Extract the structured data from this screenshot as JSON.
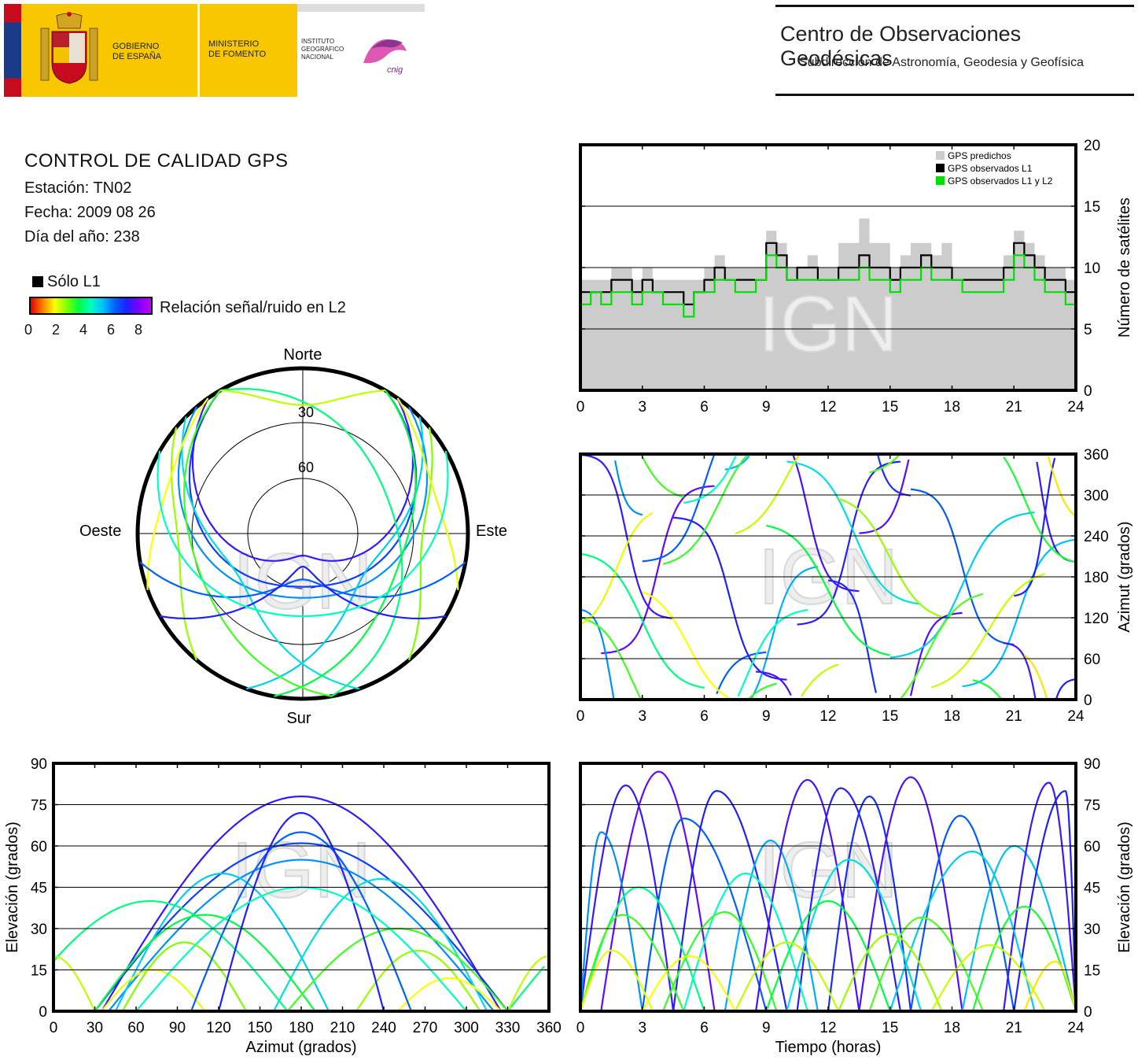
{
  "header": {
    "gov_line1": "GOBIERNO",
    "gov_line2": "DE ESPAÑA",
    "ministry_line1": "MINISTERIO",
    "ministry_line2": "DE FOMENTO",
    "ign_line1": "INSTITUTO",
    "ign_line2": "GEOGRÁFICO",
    "ign_line3": "NACIONAL",
    "cnig_logo_text": "cnig",
    "center_title": "Centro de Observaciones Geodésicas",
    "center_subtitle": "Subdirección de Astronomía, Geodesia y Geofísica"
  },
  "info": {
    "title": "CONTROL DE CALIDAD GPS",
    "station": "Estación: TN02",
    "date": "Fecha: 2009 08 26",
    "doy": "Día del año: 238",
    "legend_l1": "Sólo L1",
    "colorbar_label": "Relación señal/ruido en L2",
    "colorbar_ticks": [
      "0",
      "2",
      "4",
      "6",
      "8"
    ],
    "colorbar_colors": [
      "#e00000",
      "#ff8000",
      "#ffff00",
      "#80ff00",
      "#00ff40",
      "#00ffc0",
      "#00c0ff",
      "#0060ff",
      "#2020ff",
      "#8000ff"
    ]
  },
  "watermark": "IGN",
  "chart_data": [
    {
      "id": "skyplot",
      "type": "scatter",
      "title": "",
      "labels": {
        "north": "Norte",
        "south": "Sur",
        "east": "Este",
        "west": "Oeste"
      },
      "rings": [
        "30",
        "60"
      ],
      "tracks": [
        {
          "az_start": 30,
          "az_end": 330,
          "el_max": 61,
          "snr": 7.5
        },
        {
          "az_start": 35,
          "az_end": 325,
          "el_max": 78,
          "snr": 8.2
        },
        {
          "az_start": 40,
          "az_end": 320,
          "el_max": 55,
          "snr": 6.5
        },
        {
          "az_start": 45,
          "az_end": 200,
          "el_max": 50,
          "snr": 5.8
        },
        {
          "az_start": 160,
          "az_end": 315,
          "el_max": 48,
          "snr": 5.5
        },
        {
          "az_start": 330,
          "az_end": 170,
          "el_max": 40,
          "snr": 4.5
        },
        {
          "az_start": 30,
          "az_end": 190,
          "el_max": 35,
          "snr": 4.0
        },
        {
          "az_start": 170,
          "az_end": 330,
          "el_max": 30,
          "snr": 3.5
        },
        {
          "az_start": 50,
          "az_end": 140,
          "el_max": 25,
          "snr": 3.0
        },
        {
          "az_start": 220,
          "az_end": 310,
          "el_max": 22,
          "snr": 2.8
        },
        {
          "az_start": 35,
          "az_end": 110,
          "el_max": 15,
          "snr": 2.2
        },
        {
          "az_start": 250,
          "az_end": 325,
          "el_max": 12,
          "snr": 2.0
        },
        {
          "az_start": 330,
          "az_end": 30,
          "el_max": 20,
          "snr": 2.5
        },
        {
          "az_start": 100,
          "az_end": 260,
          "el_max": 65,
          "snr": 7.0
        },
        {
          "az_start": 120,
          "az_end": 240,
          "el_max": 72,
          "snr": 8.0
        },
        {
          "az_start": 60,
          "az_end": 300,
          "el_max": 45,
          "snr": 5.0
        }
      ]
    },
    {
      "id": "satellite-count",
      "type": "area",
      "title": "",
      "xlabel": "",
      "ylabel": "Número de satélites",
      "xlim": [
        0,
        24
      ],
      "ylim": [
        0,
        20
      ],
      "xticks": [
        "0",
        "3",
        "6",
        "9",
        "12",
        "15",
        "18",
        "21",
        "24"
      ],
      "yticks": [
        "0",
        "5",
        "10",
        "15",
        "20"
      ],
      "legend": [
        "GPS predichos",
        "GPS observados L1",
        "GPS observados L1 y L2"
      ],
      "legend_colors": [
        "#cccccc",
        "#000000",
        "#00e000"
      ],
      "x": [
        0,
        0.5,
        1,
        1.5,
        2,
        2.5,
        3,
        3.5,
        4,
        4.5,
        5,
        5.5,
        6,
        6.5,
        7,
        7.5,
        8,
        8.5,
        9,
        9.5,
        10,
        10.5,
        11,
        11.5,
        12,
        12.5,
        13,
        13.5,
        14,
        14.5,
        15,
        15.5,
        16,
        16.5,
        17,
        17.5,
        18,
        18.5,
        19,
        19.5,
        20,
        20.5,
        21,
        21.5,
        22,
        22.5,
        23,
        23.5,
        24
      ],
      "series": [
        {
          "name": "GPS predichos",
          "values": [
            9,
            9,
            9,
            10,
            10,
            9,
            10,
            9,
            9,
            9,
            9,
            9,
            10,
            11,
            10,
            10,
            10,
            10,
            13,
            12,
            10,
            10,
            11,
            10,
            10,
            12,
            12,
            14,
            12,
            12,
            10,
            11,
            12,
            12,
            11,
            12,
            10,
            10,
            10,
            10,
            10,
            11,
            13,
            12,
            11,
            10,
            10,
            9,
            9
          ]
        },
        {
          "name": "GPS observados L1",
          "values": [
            8,
            8,
            8,
            9,
            9,
            8,
            9,
            8,
            8,
            8,
            7,
            8,
            9,
            10,
            9,
            9,
            9,
            9,
            12,
            11,
            9,
            10,
            10,
            9,
            9,
            10,
            10,
            11,
            10,
            10,
            9,
            10,
            10,
            11,
            10,
            10,
            9,
            9,
            9,
            9,
            9,
            10,
            12,
            11,
            10,
            9,
            9,
            8,
            8
          ]
        },
        {
          "name": "GPS observados L1 y L2",
          "values": [
            7,
            8,
            7,
            8,
            8,
            7,
            8,
            8,
            7,
            7,
            6,
            8,
            8,
            9,
            9,
            8,
            8,
            9,
            11,
            10,
            9,
            9,
            9,
            9,
            9,
            9,
            9,
            10,
            9,
            9,
            8,
            9,
            9,
            10,
            9,
            9,
            9,
            8,
            8,
            8,
            8,
            9,
            11,
            10,
            9,
            8,
            8,
            7,
            7
          ]
        }
      ]
    },
    {
      "id": "azimuth-vs-time",
      "type": "scatter",
      "title": "",
      "xlabel": "",
      "ylabel": "Azimut (grados)",
      "xlim": [
        0,
        24
      ],
      "ylim": [
        0,
        360
      ],
      "xticks": [
        "0",
        "3",
        "6",
        "9",
        "12",
        "15",
        "18",
        "21",
        "24"
      ],
      "yticks": [
        "0",
        "60",
        "120",
        "180",
        "240",
        "300",
        "360"
      ]
    },
    {
      "id": "elevation-vs-azimuth",
      "type": "scatter",
      "title": "",
      "xlabel": "Azimut (grados)",
      "ylabel": "Elevación (grados)",
      "xlim": [
        0,
        360
      ],
      "ylim": [
        0,
        90
      ],
      "xticks": [
        "0",
        "30",
        "60",
        "90",
        "120",
        "150",
        "180",
        "210",
        "240",
        "270",
        "300",
        "330",
        "360"
      ],
      "yticks": [
        "0",
        "15",
        "30",
        "45",
        "60",
        "75",
        "90"
      ]
    },
    {
      "id": "elevation-vs-time",
      "type": "scatter",
      "title": "",
      "xlabel": "Tiempo (horas)",
      "ylabel": "Elevación (grados)",
      "xlim": [
        0,
        24
      ],
      "ylim": [
        0,
        90
      ],
      "xticks": [
        "0",
        "3",
        "6",
        "9",
        "12",
        "15",
        "18",
        "21",
        "24"
      ],
      "yticks": [
        "0",
        "15",
        "30",
        "45",
        "60",
        "75",
        "90"
      ],
      "passes": [
        {
          "t_start": 0,
          "t_end": 4.5,
          "el_max": 82,
          "t_peak": 2.2
        },
        {
          "t_start": 1.0,
          "t_end": 6.5,
          "el_max": 87,
          "t_peak": 3.8
        },
        {
          "t_start": 0,
          "t_end": 3.0,
          "el_max": 65,
          "t_peak": 1.0
        },
        {
          "t_start": 3.0,
          "t_end": 9.0,
          "el_max": 70,
          "t_peak": 5.0
        },
        {
          "t_start": 4.5,
          "t_end": 10.0,
          "el_max": 80,
          "t_peak": 6.6
        },
        {
          "t_start": 7.0,
          "t_end": 11.5,
          "el_max": 62,
          "t_peak": 9.2
        },
        {
          "t_start": 8.5,
          "t_end": 13.5,
          "el_max": 84,
          "t_peak": 11.0
        },
        {
          "t_start": 10.5,
          "t_end": 15.5,
          "el_max": 81,
          "t_peak": 12.6
        },
        {
          "t_start": 12.0,
          "t_end": 16.0,
          "el_max": 78,
          "t_peak": 14.0
        },
        {
          "t_start": 13.5,
          "t_end": 18.5,
          "el_max": 85,
          "t_peak": 16.0
        },
        {
          "t_start": 16.0,
          "t_end": 21.0,
          "el_max": 71,
          "t_peak": 18.4
        },
        {
          "t_start": 18.5,
          "t_end": 24.0,
          "el_max": 60,
          "t_peak": 21.0
        },
        {
          "t_start": 20.5,
          "t_end": 24.0,
          "el_max": 83,
          "t_peak": 22.7
        },
        {
          "t_start": 21.0,
          "t_end": 24.0,
          "el_max": 80,
          "t_peak": 23.5
        },
        {
          "t_start": 0,
          "t_end": 6.0,
          "el_max": 45,
          "t_peak": 2.8
        },
        {
          "t_start": 5.0,
          "t_end": 11.0,
          "el_max": 50,
          "t_peak": 8.0
        },
        {
          "t_start": 10.0,
          "t_end": 16.5,
          "el_max": 55,
          "t_peak": 13.0
        },
        {
          "t_start": 15.0,
          "t_end": 22.0,
          "el_max": 58,
          "t_peak": 19.0
        },
        {
          "t_start": 0,
          "t_end": 5.0,
          "el_max": 35,
          "t_peak": 2.0
        },
        {
          "t_start": 4.0,
          "t_end": 9.5,
          "el_max": 36,
          "t_peak": 7.0
        },
        {
          "t_start": 9.0,
          "t_end": 15.0,
          "el_max": 40,
          "t_peak": 12.0
        },
        {
          "t_start": 14.0,
          "t_end": 19.5,
          "el_max": 34,
          "t_peak": 16.5
        },
        {
          "t_start": 19.0,
          "t_end": 24.0,
          "el_max": 38,
          "t_peak": 21.5
        },
        {
          "t_start": 0,
          "t_end": 3.5,
          "el_max": 22,
          "t_peak": 1.5
        },
        {
          "t_start": 3.0,
          "t_end": 7.5,
          "el_max": 20,
          "t_peak": 5.3
        },
        {
          "t_start": 7.5,
          "t_end": 12.5,
          "el_max": 25,
          "t_peak": 10.0
        },
        {
          "t_start": 12.5,
          "t_end": 17.5,
          "el_max": 28,
          "t_peak": 15.0
        },
        {
          "t_start": 17.0,
          "t_end": 22.5,
          "el_max": 24,
          "t_peak": 19.8
        },
        {
          "t_start": 21.5,
          "t_end": 24.0,
          "el_max": 18,
          "t_peak": 23.0
        }
      ]
    }
  ]
}
